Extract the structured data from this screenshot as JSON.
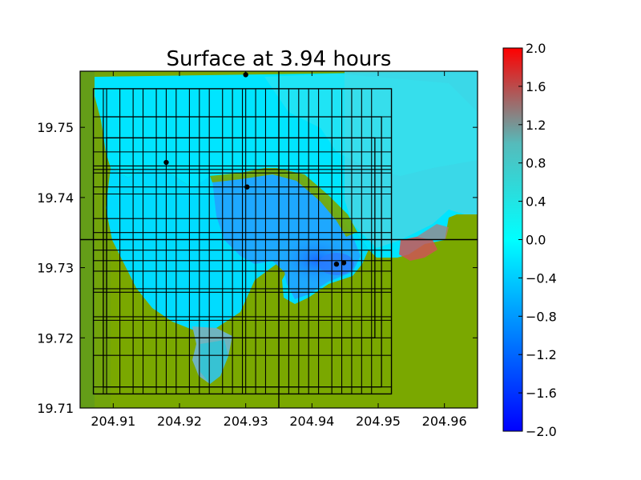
{
  "chart_data": {
    "type": "heatmap",
    "title": "Surface at 3.94 hours",
    "xlabel": "",
    "ylabel": "",
    "xlim": [
      204.905,
      204.965
    ],
    "ylim": [
      19.71,
      19.758
    ],
    "xticks": [
      204.91,
      204.92,
      204.93,
      204.94,
      204.95,
      204.96
    ],
    "xtick_labels": [
      "204.91",
      "204.92",
      "204.93",
      "204.94",
      "204.95",
      "204.96"
    ],
    "yticks": [
      19.71,
      19.72,
      19.73,
      19.74,
      19.75
    ],
    "ytick_labels": [
      "19.71",
      "19.72",
      "19.73",
      "19.74",
      "19.75"
    ],
    "colorbar": {
      "range": [
        -2.0,
        2.0
      ],
      "ticks": [
        2.0,
        1.6,
        1.2,
        0.8,
        0.4,
        0.0,
        -0.4,
        -0.8,
        -1.2,
        -1.6,
        -2.0
      ],
      "tick_labels": [
        "2.0",
        "1.6",
        "1.2",
        "0.8",
        "0.4",
        "0.0",
        "−0.4",
        "−0.8",
        "−1.2",
        "−1.6",
        "−2.0"
      ],
      "colors": [
        "#0000ff",
        "#00ffff",
        "#ff0000"
      ]
    },
    "land_color": "#7aa800",
    "grid_on": false,
    "patch_boxes": [
      {
        "x": [
          204.905,
          204.965
        ],
        "y": [
          19.71,
          19.758
        ]
      },
      {
        "x": [
          204.907,
          204.952
        ],
        "y": [
          19.712,
          19.7555
        ]
      },
      {
        "x": [
          204.9085,
          204.9505
        ],
        "y": [
          19.713,
          19.7515
        ]
      },
      {
        "x": [
          204.909,
          204.9495
        ],
        "y": [
          19.72,
          19.7485
        ]
      }
    ],
    "patch_vlines": [
      204.907,
      204.9085,
      204.909,
      204.911,
      204.913,
      204.9145,
      204.9165,
      204.918,
      204.9195,
      204.9215,
      204.923,
      204.9245,
      204.9265,
      204.928,
      204.9295,
      204.93,
      204.9315,
      204.933,
      204.935,
      204.9365,
      204.938,
      204.9395,
      204.941,
      204.943,
      204.9445,
      204.946,
      204.9475,
      204.949,
      204.952
    ],
    "patch_hlines": [
      19.712,
      19.713,
      19.7175,
      19.72,
      19.7225,
      19.723,
      19.7265,
      19.727,
      19.7295,
      19.731,
      19.7325,
      19.734,
      19.735,
      19.737,
      19.7405,
      19.7415,
      19.7435,
      19.744,
      19.7445,
      19.7465,
      19.7485,
      19.7515,
      19.7555
    ],
    "main_cross": {
      "x": 204.935,
      "y": 19.734
    },
    "gauges": [
      {
        "x": 204.93,
        "y": 19.7575
      },
      {
        "x": 204.918,
        "y": 19.745
      },
      {
        "x": 204.9302,
        "y": 19.7415
      },
      {
        "x": 204.9437,
        "y": 19.7305
      },
      {
        "x": 204.9448,
        "y": 19.7307
      }
    ]
  }
}
